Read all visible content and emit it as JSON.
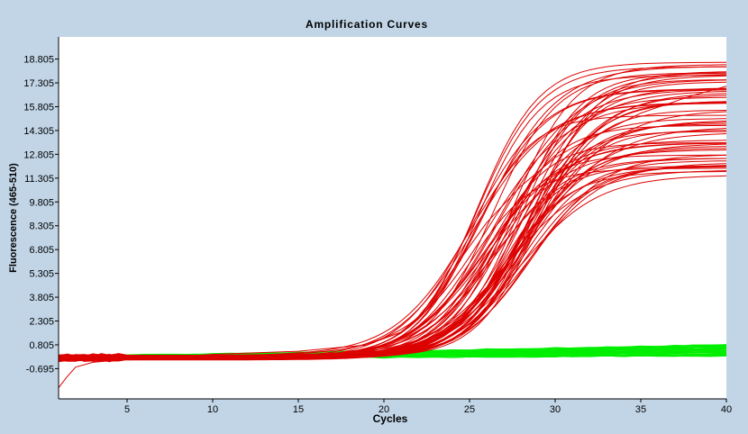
{
  "chart_data": {
    "type": "line",
    "title": "Amplification Curves",
    "xlabel": "Cycles",
    "ylabel": "Fluorescence (465-510)",
    "xlim": [
      1,
      40
    ],
    "ylim": [
      -2.6,
      20.2
    ],
    "x_ticks": [
      5,
      10,
      15,
      20,
      25,
      30,
      35,
      40
    ],
    "y_ticks": [
      -0.695,
      0.805,
      2.305,
      3.805,
      5.305,
      6.805,
      8.305,
      9.805,
      11.305,
      12.805,
      14.305,
      15.805,
      17.305,
      18.805
    ],
    "y_tick_labels": [
      "-0.695",
      "0.805",
      "2.305",
      "3.805",
      "5.305",
      "6.805",
      "8.305",
      "9.805",
      "11.305",
      "12.805",
      "14.305",
      "15.805",
      "17.305",
      "18.805"
    ],
    "x_tick_labels": [
      "5",
      "10",
      "15",
      "20",
      "25",
      "30",
      "35",
      "40"
    ],
    "grid": false,
    "series_groups": [
      {
        "color": "#dd0000",
        "count": 60,
        "baseline": 0.0,
        "description_model": "sigmoid",
        "plateau_range": [
          11.5,
          18.6
        ],
        "midpoint_cycle_range": [
          25.0,
          29.0
        ],
        "slope_range": [
          1.7,
          2.4
        ]
      },
      {
        "color": "#00ee00",
        "count": 40,
        "start_value_range": [
          -0.1,
          0.1
        ],
        "end_value_range": [
          0.1,
          0.9
        ]
      }
    ]
  }
}
